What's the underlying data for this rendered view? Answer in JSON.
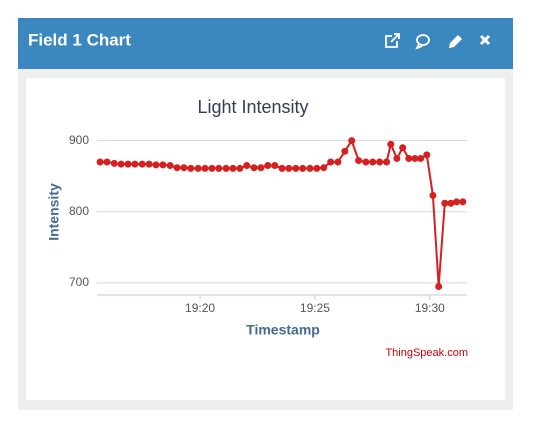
{
  "header": {
    "title": "Field 1 Chart"
  },
  "chart_data": {
    "type": "line",
    "title": "Light Intensity",
    "x_label": "Timestamp",
    "y_label": "Intensity",
    "x": [
      "19:15:39",
      "19:15:57",
      "19:16:16",
      "19:16:34",
      "19:16:52",
      "19:17:10",
      "19:17:29",
      "19:17:47",
      "19:18:05",
      "19:18:23",
      "19:18:42",
      "19:19:00",
      "19:19:18",
      "19:19:36",
      "19:19:55",
      "19:20:13",
      "19:20:31",
      "19:20:49",
      "19:21:08",
      "19:21:26",
      "19:21:44",
      "19:22:02",
      "19:22:21",
      "19:22:39",
      "19:22:57",
      "19:23:15",
      "19:23:34",
      "19:23:52",
      "19:24:10",
      "19:24:28",
      "19:24:47",
      "19:25:05",
      "19:25:23",
      "19:25:41",
      "19:26:00",
      "19:26:18",
      "19:26:36",
      "19:26:54",
      "19:27:13",
      "19:27:31",
      "19:27:49",
      "19:28:07",
      "19:28:18",
      "19:28:34",
      "19:28:49",
      "19:29:05",
      "19:29:21",
      "19:29:36",
      "19:29:52",
      "19:30:08",
      "19:30:23",
      "19:30:39",
      "19:30:55",
      "19:31:10",
      "19:31:26"
    ],
    "series": [
      {
        "name": "Field 1",
        "color": "#d62020",
        "values": [
          870,
          870,
          868,
          867,
          867,
          867,
          867,
          867,
          866,
          866,
          865,
          862,
          862,
          861,
          861,
          861,
          861,
          861,
          861,
          861,
          861,
          865,
          862,
          862,
          865,
          865,
          861,
          861,
          861,
          861,
          861,
          861,
          862,
          870,
          870,
          885,
          900,
          872,
          870,
          870,
          870,
          870,
          895,
          875,
          890,
          875,
          875,
          875,
          880,
          823,
          695,
          812,
          812,
          814,
          814
        ]
      }
    ],
    "xlim": [
      "19:15:31",
      "19:31:37"
    ],
    "xticks": [
      "19:20",
      "19:25",
      "19:30"
    ],
    "ylim": [
      683,
      915
    ],
    "yticks": [
      700,
      800,
      900
    ],
    "grid": true,
    "credit": "ThingSpeak.com"
  }
}
